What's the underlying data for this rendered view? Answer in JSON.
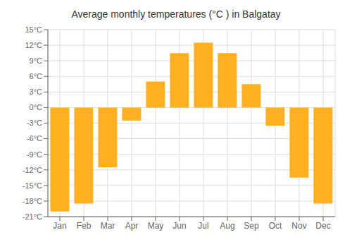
{
  "chart_data": {
    "type": "bar",
    "title": "Average monthly temperatures (°C ) in Balgatay",
    "categories": [
      "Jan",
      "Feb",
      "Mar",
      "Apr",
      "May",
      "Jun",
      "Jul",
      "Aug",
      "Sep",
      "Oct",
      "Nov",
      "Dec"
    ],
    "values": [
      -20,
      -18.5,
      -11.5,
      -2.5,
      5,
      10.5,
      12.5,
      10.5,
      4.5,
      -3.5,
      -13.5,
      -18.5
    ],
    "color": "#FFB020",
    "ylim": [
      -21,
      15
    ],
    "yticks": [
      {
        "value": -21,
        "label": "-21°C"
      },
      {
        "value": -18,
        "label": "-18°C"
      },
      {
        "value": -15,
        "label": "-15°C"
      },
      {
        "value": -12,
        "label": "-12°C"
      },
      {
        "value": -9,
        "label": "-9°C"
      },
      {
        "value": -6,
        "label": "-6°C"
      },
      {
        "value": -3,
        "label": "-3°C"
      },
      {
        "value": 0,
        "label": "0°C"
      },
      {
        "value": 3,
        "label": "3°C"
      },
      {
        "value": 6,
        "label": "6°C"
      },
      {
        "value": 9,
        "label": "9°C"
      },
      {
        "value": 12,
        "label": "12°C"
      },
      {
        "value": 15,
        "label": "15°C"
      }
    ],
    "grid": true
  }
}
